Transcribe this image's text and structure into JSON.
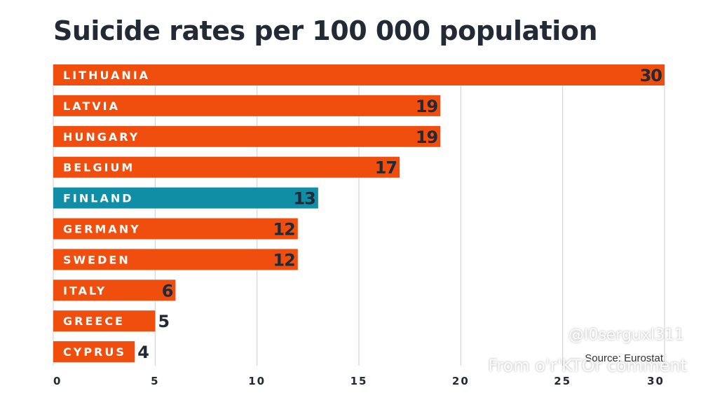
{
  "chart_data": {
    "type": "bar",
    "orientation": "horizontal",
    "title": "Suicide rates per 100 000 population",
    "categories": [
      "LITHUANIA",
      "LATVIA",
      "HUNGARY",
      "BELGIUM",
      "FINLAND",
      "GERMANY",
      "SWEDEN",
      "ITALY",
      "GREECE",
      "CYPRUS"
    ],
    "values": [
      30,
      19,
      19,
      17,
      13,
      12,
      12,
      6,
      5,
      4
    ],
    "highlight": "FINLAND",
    "xlim": [
      0,
      30
    ],
    "xticks": [
      0,
      5,
      10,
      15,
      20,
      25,
      30
    ],
    "grid": "vertical",
    "source": "Source: Eurostat",
    "colors": {
      "bar": "#f04e0f",
      "highlight": "#0f8ea6",
      "grid": "#d6d6d6",
      "text": "#222a35"
    }
  },
  "watermarks": [
    "@I0serguxl311",
    "From o'r'KTOr comment"
  ]
}
